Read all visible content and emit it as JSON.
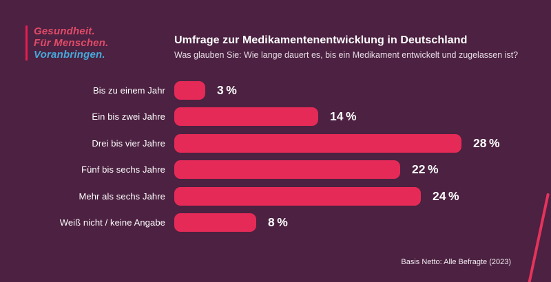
{
  "logo": {
    "line1": "Gesundheit.",
    "line2": "Für Menschen.",
    "line3": "Voranbringen."
  },
  "header": {
    "title": "Umfrage zur Medikamentenentwicklung in Deutschland",
    "subtitle": "Was glauben Sie: Wie lange dauert es, bis ein Medikament entwickelt und zugelassen ist?"
  },
  "footer": {
    "note": "Basis Netto: Alle Befragte (2023)"
  },
  "colors": {
    "background": "#4C2141",
    "bar": "#E62A57",
    "logo_red": "#E14B69",
    "logo_blue": "#46AADC",
    "accent_line": "#E6335C",
    "text": "#FFFFFF"
  },
  "chart_data": {
    "type": "bar",
    "orientation": "horizontal",
    "title": "Umfrage zur Medikamentenentwicklung in Deutschland",
    "subtitle": "Was glauben Sie: Wie lange dauert es, bis ein Medikament entwickelt und zugelassen ist?",
    "categories": [
      "Bis zu einem Jahr",
      "Ein bis zwei Jahre",
      "Drei bis vier Jahre",
      "Fünf bis sechs Jahre",
      "Mehr als sechs Jahre",
      "Weiß nicht / keine Angabe"
    ],
    "values": [
      3,
      14,
      28,
      22,
      24,
      8
    ],
    "value_labels": [
      "3 %",
      "14 %",
      "28 %",
      "22 %",
      "24 %",
      "8 %"
    ],
    "unit": "%",
    "xlim": [
      0,
      30
    ],
    "grid": false,
    "legend": false,
    "source_note": "Basis Netto: Alle Befragte (2023)"
  }
}
